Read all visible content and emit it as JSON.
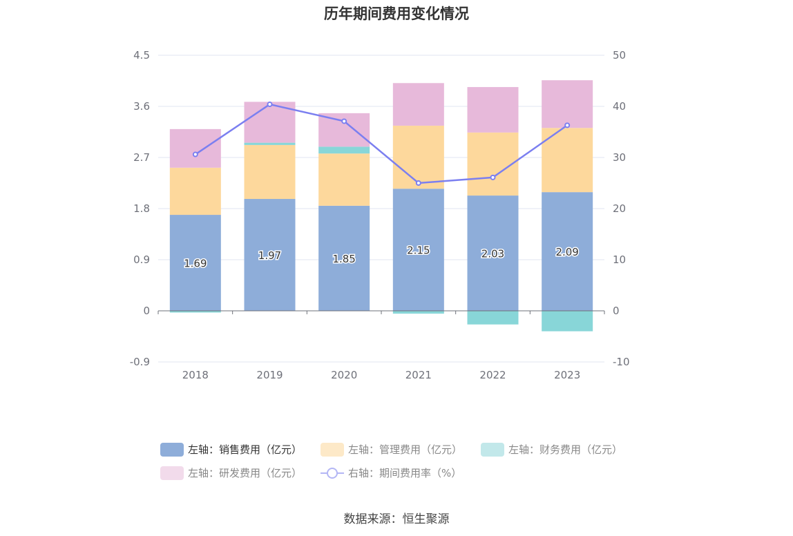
{
  "title": "历年期间费用变化情况",
  "source": "数据来源：恒生聚源",
  "chart_data": {
    "type": "bar",
    "stacked": true,
    "categories": [
      "2018",
      "2019",
      "2020",
      "2021",
      "2022",
      "2023"
    ],
    "left_axis": {
      "ticks": [
        "4.5",
        "3.6",
        "2.7",
        "1.8",
        "0.9",
        "0",
        "-0.9"
      ],
      "ylim": [
        -0.9,
        4.5
      ]
    },
    "right_axis": {
      "ticks": [
        "50",
        "40",
        "30",
        "20",
        "10",
        "0",
        "-10"
      ],
      "ylim": [
        -10,
        50
      ]
    },
    "series": [
      {
        "name": "左轴：销售费用（亿元）",
        "type": "bar",
        "color": "#8eadd9",
        "values": [
          1.69,
          1.97,
          1.85,
          2.15,
          2.03,
          2.09
        ],
        "data_labels": [
          "1.69",
          "1.97",
          "1.85",
          "2.15",
          "2.03",
          "2.09"
        ]
      },
      {
        "name": "左轴：管理费用（亿元）",
        "type": "bar",
        "color": "#fdd89c",
        "values": [
          0.83,
          0.95,
          0.92,
          1.11,
          1.11,
          1.13
        ]
      },
      {
        "name": "左轴：财务费用（亿元）",
        "type": "bar",
        "color": "#88d6d8",
        "values": [
          -0.03,
          0.04,
          0.12,
          -0.05,
          -0.24,
          -0.36
        ]
      },
      {
        "name": "左轴：研发费用（亿元）",
        "type": "bar",
        "color": "#e7b9da",
        "values": [
          0.68,
          0.72,
          0.59,
          0.75,
          0.8,
          0.84
        ]
      },
      {
        "name": "右轴：期间费用率（%）",
        "type": "line",
        "axis": "right",
        "color": "#7b7ff0",
        "values": [
          30.6,
          40.4,
          37.1,
          25.0,
          26.1,
          36.3
        ]
      }
    ],
    "grid": true,
    "legend_position": "bottom"
  },
  "legend": {
    "items": [
      {
        "label": "左轴：销售费用（亿元）",
        "color": "#8eadd9",
        "kind": "bar",
        "state": "active"
      },
      {
        "label": "左轴：管理费用（亿元）",
        "color": "#fde9c8",
        "kind": "bar",
        "state": "inactive"
      },
      {
        "label": "左轴：财务费用（亿元）",
        "color": "#c2e8ea",
        "kind": "bar",
        "state": "inactive"
      },
      {
        "label": "左轴：研发费用（亿元）",
        "color": "#f2dbeb",
        "kind": "bar",
        "state": "inactive"
      },
      {
        "label": "右轴：期间费用率（%）",
        "color": "#b3b6f5",
        "kind": "line",
        "state": "inactive"
      }
    ]
  }
}
